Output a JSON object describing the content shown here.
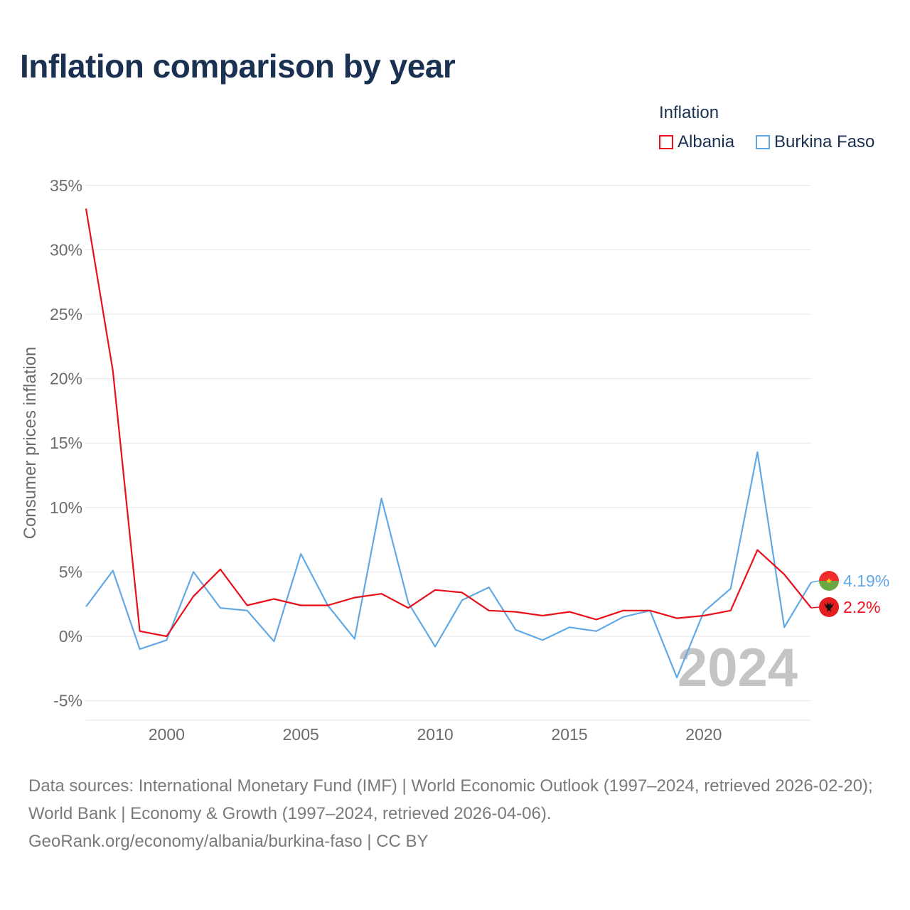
{
  "title": "Inflation comparison by year",
  "legend": {
    "title": "Inflation",
    "items": [
      {
        "name": "Albania",
        "color": "#e8101a"
      },
      {
        "name": "Burkina Faso",
        "color": "#62a8e5"
      }
    ]
  },
  "chart_data": {
    "type": "line",
    "title": "Inflation comparison by year",
    "xlabel": "",
    "ylabel": "Consumer prices inflation",
    "xlim": [
      1997,
      2024
    ],
    "ylim": [
      -6,
      35
    ],
    "yticks": [
      -5,
      0,
      5,
      10,
      15,
      20,
      25,
      30,
      35
    ],
    "ytick_labels": [
      "-5%",
      "0%",
      "5%",
      "10%",
      "15%",
      "20%",
      "25%",
      "30%",
      "35%"
    ],
    "xticks": [
      2000,
      2005,
      2010,
      2015,
      2020
    ],
    "xtick_labels": [
      "2000",
      "2005",
      "2010",
      "2015",
      "2020"
    ],
    "grid": true,
    "legend_position": "top-right",
    "year_label": "2024",
    "x": [
      1997,
      1998,
      1999,
      2000,
      2001,
      2002,
      2003,
      2004,
      2005,
      2006,
      2007,
      2008,
      2009,
      2010,
      2011,
      2012,
      2013,
      2014,
      2015,
      2016,
      2017,
      2018,
      2019,
      2020,
      2021,
      2022,
      2023,
      2024
    ],
    "series": [
      {
        "name": "Albania",
        "color": "#e8101a",
        "end_label": "2.2%",
        "flag": "albania",
        "values": [
          33.2,
          20.6,
          0.4,
          0.0,
          3.1,
          5.2,
          2.4,
          2.9,
          2.4,
          2.4,
          3.0,
          3.3,
          2.2,
          3.6,
          3.4,
          2.0,
          1.9,
          1.6,
          1.9,
          1.3,
          2.0,
          2.0,
          1.4,
          1.6,
          2.0,
          6.7,
          4.8,
          2.2
        ]
      },
      {
        "name": "Burkina Faso",
        "color": "#62a8e5",
        "end_label": "4.19%",
        "flag": "burkina-faso",
        "values": [
          2.3,
          5.1,
          -1.0,
          -0.3,
          5.0,
          2.2,
          2.0,
          -0.4,
          6.4,
          2.4,
          -0.2,
          10.7,
          2.6,
          -0.8,
          2.8,
          3.8,
          0.5,
          -0.3,
          0.7,
          0.4,
          1.5,
          2.0,
          -3.2,
          1.9,
          3.7,
          14.3,
          0.7,
          4.19
        ]
      }
    ]
  },
  "source": {
    "line1": "Data sources: International Monetary Fund (IMF) | World Economic Outlook (1997–2024, retrieved 2026-02-20); World Bank | Economy & Growth (1997–2024, retrieved 2026-04-06).",
    "line2": "GeoRank.org/economy/albania/burkina-faso | CC BY"
  }
}
